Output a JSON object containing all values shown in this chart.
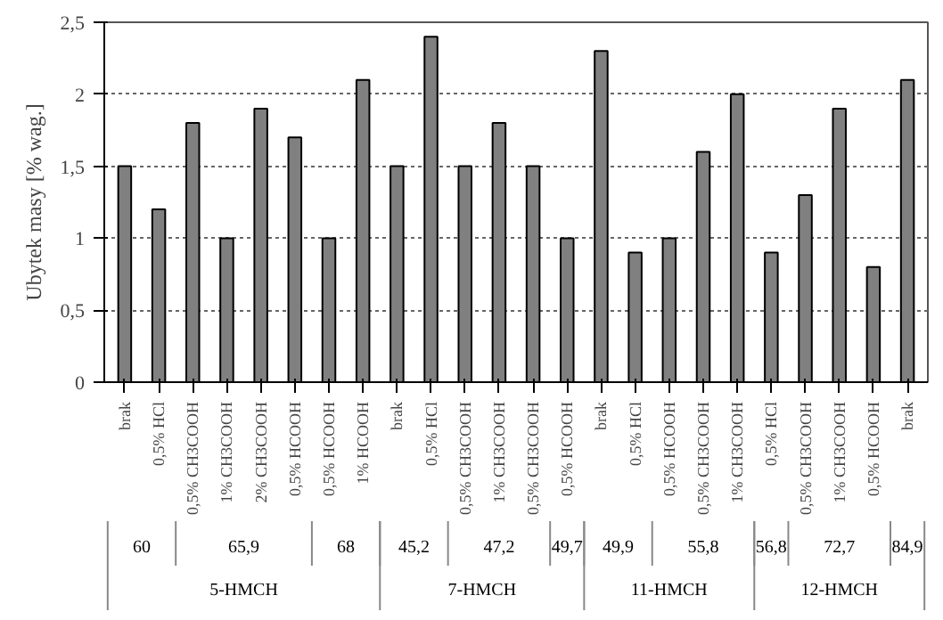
{
  "chart_data": {
    "type": "bar",
    "ylabel": "Ubytek masy [% wag.]",
    "categories": [
      "brak",
      "0,5% HCl",
      "0,5% CH3COOH",
      "1% CH3COOH",
      "2% CH3COOH",
      "0,5% HCOOH",
      "0,5% HCOOH",
      "1% HCOOH",
      "brak",
      "0,5% HCl",
      "0,5% CH3COOH",
      "1% CH3COOH",
      "0,5% CH3COOH",
      "0,5% HCOOH",
      "brak",
      "0,5% HCl",
      "0,5% HCOOH",
      "0,5% CH3COOH",
      "1% CH3COOH",
      "0,5% HCl",
      "0,5% CH3COOH",
      "1% CH3COOH",
      "0,5% HCOOH",
      "brak"
    ],
    "values": [
      1.5,
      1.2,
      1.8,
      1.0,
      1.9,
      1.7,
      1.0,
      2.1,
      1.5,
      2.4,
      1.5,
      1.8,
      1.5,
      1.0,
      2.3,
      0.9,
      1.0,
      1.6,
      2.0,
      0.9,
      1.3,
      1.9,
      0.8,
      2.1
    ],
    "color": "#808080",
    "ylim": [
      0,
      2.5
    ],
    "yticks": [
      0,
      {
        "value": 0.5,
        "label": "0,5"
      },
      1,
      {
        "value": 1.5,
        "label": "1,5"
      },
      2,
      {
        "value": 2.5,
        "label": "2,5"
      }
    ],
    "grid": "y",
    "annotations": [
      "60",
      "65,9",
      "68",
      "45,2",
      "47,2",
      "49,7",
      "49,9",
      "55,8",
      "56,8",
      "72,7",
      "84,9",
      "5-HMCH",
      "7-HMCH",
      "11-HMCH",
      "12-HMCH"
    ]
  }
}
